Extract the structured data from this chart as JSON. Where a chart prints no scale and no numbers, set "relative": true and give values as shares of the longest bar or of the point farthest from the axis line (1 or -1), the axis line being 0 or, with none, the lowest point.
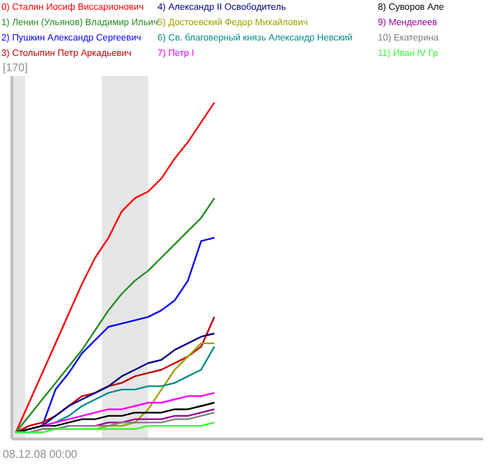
{
  "chart_data": {
    "type": "line",
    "relative": true,
    "line_style": "solid",
    "categories": [
      null,
      null,
      null,
      null,
      null,
      null,
      null,
      null,
      null,
      null,
      null,
      null,
      null,
      null,
      null,
      null,
      null,
      null,
      null,
      null,
      null,
      null,
      null,
      null,
      null,
      null,
      null,
      null,
      null,
      null,
      null,
      null,
      null,
      null,
      null,
      null
    ],
    "annotations": [
      "[170]",
      "08.12.08 00:00"
    ],
    "series": [
      {
        "name": "0) Сталин Иосиф Виссарионович",
        "color": "#ff0000",
        "values": [
          0,
          0.09,
          0.18,
          0.27,
          0.36,
          0.45,
          0.53,
          0.59,
          0.67,
          0.71,
          0.73,
          0.77,
          0.83,
          0.88,
          0.94,
          1,
          null,
          null,
          null,
          null,
          null,
          null,
          null,
          null,
          null,
          null,
          null,
          null,
          null,
          null,
          null,
          null,
          null,
          null,
          null,
          null
        ]
      },
      {
        "name": "1) Ленин (Ульянов) Владимир Ильич",
        "color": "#228b22",
        "values": [
          0,
          0.05,
          0.1,
          0.15,
          0.2,
          0.25,
          0.31,
          0.37,
          0.42,
          0.46,
          0.49,
          0.53,
          0.57,
          0.61,
          0.65,
          0.71,
          null,
          null,
          null,
          null,
          null,
          null,
          null,
          null,
          null,
          null,
          null,
          null,
          null,
          null,
          null,
          null,
          null,
          null,
          null,
          null
        ]
      },
      {
        "name": "2) Пушкин Александр Сергеевич",
        "color": "#0000ff",
        "values": [
          0,
          0.01,
          0.02,
          0.13,
          0.18,
          0.24,
          0.28,
          0.32,
          0.33,
          0.34,
          0.35,
          0.37,
          0.4,
          0.46,
          0.58,
          0.59,
          null,
          null,
          null,
          null,
          null,
          null,
          null,
          null,
          null,
          null,
          null,
          null,
          null,
          null,
          null,
          null,
          null,
          null,
          null,
          null
        ]
      },
      {
        "name": "3) Столыпин Петр Аркадьевич",
        "color": "#c00000",
        "values": [
          0,
          0.02,
          0.03,
          0.05,
          0.08,
          0.11,
          0.12,
          0.14,
          0.15,
          0.17,
          0.18,
          0.19,
          0.21,
          0.23,
          0.26,
          0.35,
          null,
          null,
          null,
          null,
          null,
          null,
          null,
          null,
          null,
          null,
          null,
          null,
          null,
          null,
          null,
          null,
          null,
          null,
          null,
          null
        ]
      },
      {
        "name": "4) Александр II Освободитель",
        "color": "#000080",
        "values": [
          0,
          0.01,
          0.02,
          0.05,
          0.08,
          0.1,
          0.12,
          0.14,
          0.17,
          0.19,
          0.21,
          0.22,
          0.25,
          0.27,
          0.29,
          0.3,
          null,
          null,
          null,
          null,
          null,
          null,
          null,
          null,
          null,
          null,
          null,
          null,
          null,
          null,
          null,
          null,
          null,
          null,
          null,
          null
        ]
      },
      {
        "name": "5) Достоевский Федор Михайлович",
        "color": "#a0a000",
        "values": [
          null,
          null,
          null,
          null,
          null,
          0.01,
          0.01,
          0.02,
          0.02,
          0.03,
          0.07,
          0.13,
          0.19,
          0.23,
          0.27,
          0.27,
          null,
          null,
          null,
          null,
          null,
          null,
          null,
          null,
          null,
          null,
          null,
          null,
          null,
          null,
          null,
          null,
          null,
          null,
          null,
          null
        ]
      },
      {
        "name": "6) Св. благоверный князь Александр Невский",
        "color": "#008b8b",
        "values": [
          null,
          null,
          0.02,
          0.03,
          0.05,
          0.08,
          0.1,
          0.12,
          0.13,
          0.13,
          0.14,
          0.14,
          0.15,
          0.17,
          0.19,
          0.26,
          null,
          null,
          null,
          null,
          null,
          null,
          null,
          null,
          null,
          null,
          null,
          null,
          null,
          null,
          null,
          null,
          null,
          null,
          null,
          null
        ]
      },
      {
        "name": "7) Петр I",
        "color": "#ff00ff",
        "values": [
          0,
          0.01,
          0.02,
          0.03,
          0.04,
          0.05,
          0.06,
          0.07,
          0.07,
          0.08,
          0.09,
          0.09,
          0.1,
          0.11,
          0.11,
          0.12,
          null,
          null,
          null,
          null,
          null,
          null,
          null,
          null,
          null,
          null,
          null,
          null,
          null,
          null,
          null,
          null,
          null,
          null,
          null,
          null
        ]
      },
      {
        "name": "8) Суворов Але",
        "color": "#000000",
        "values": [
          0,
          0.01,
          0.02,
          0.02,
          0.03,
          0.04,
          0.04,
          0.05,
          0.05,
          0.06,
          0.06,
          0.06,
          0.07,
          0.07,
          0.08,
          0.09,
          null,
          null,
          null,
          null,
          null,
          null,
          null,
          null,
          null,
          null,
          null,
          null,
          null,
          null,
          null,
          null,
          null,
          null,
          null,
          null
        ]
      },
      {
        "name": "9) Менделеев",
        "color": "#990099",
        "values": [
          0,
          0,
          0.01,
          0.01,
          0.02,
          0.02,
          0.02,
          0.03,
          0.03,
          0.04,
          0.04,
          0.04,
          0.05,
          0.05,
          0.06,
          0.07,
          null,
          null,
          null,
          null,
          null,
          null,
          null,
          null,
          null,
          null,
          null,
          null,
          null,
          null,
          null,
          null,
          null,
          null,
          null,
          null
        ]
      },
      {
        "name": "10) Екатерина",
        "color": "#808080",
        "values": [
          0,
          0,
          0.01,
          0.01,
          0.02,
          0.02,
          0.02,
          0.02,
          0.03,
          0.03,
          0.03,
          0.03,
          0.04,
          0.04,
          0.05,
          0.06,
          null,
          null,
          null,
          null,
          null,
          null,
          null,
          null,
          null,
          null,
          null,
          null,
          null,
          null,
          null,
          null,
          null,
          null,
          null,
          null
        ]
      },
      {
        "name": "11) Иван IV Гр",
        "color": "#33ff33",
        "values": [
          0,
          0,
          0,
          0.01,
          0.01,
          0.01,
          0.01,
          0.01,
          0.01,
          0.01,
          0.02,
          0.02,
          0.02,
          0.02,
          0.02,
          0.03,
          null,
          null,
          null,
          null,
          null,
          null,
          null,
          null,
          null,
          null,
          null,
          null,
          null,
          null,
          null,
          null,
          null,
          null,
          null,
          null
        ]
      }
    ]
  }
}
